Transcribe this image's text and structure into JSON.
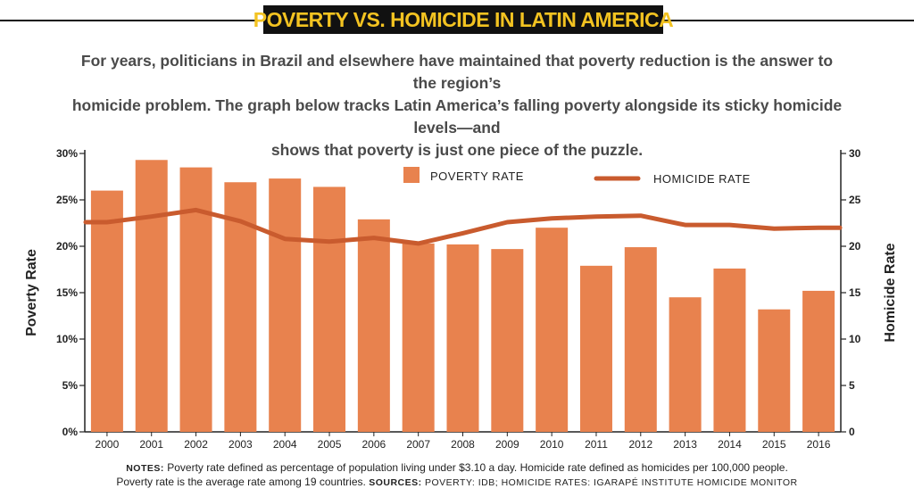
{
  "header": {
    "title": "POVERTY VS. HOMICIDE IN LATIN AMERICA",
    "subtitle_lines": [
      "For years, politicians in Brazil and elsewhere have maintained that poverty reduction is the answer to the region’s",
      "homicide problem. The graph below tracks Latin America’s falling poverty alongside its sticky homicide levels—and",
      "shows that poverty is just one piece of the puzzle."
    ]
  },
  "colors": {
    "bar": "#e8824e",
    "line": "#c95b2e",
    "title_bg": "#111111",
    "title_fg": "#f3c321",
    "axis": "#222222"
  },
  "chart_data": {
    "type": "bar",
    "categories": [
      "2000",
      "2001",
      "2002",
      "2003",
      "2004",
      "2005",
      "2006",
      "2007",
      "2008",
      "2009",
      "2010",
      "2011",
      "2012",
      "2013",
      "2014",
      "2015",
      "2016"
    ],
    "series": [
      {
        "name": "POVERTY RATE",
        "type": "bar",
        "axis": "left",
        "values": [
          26.0,
          29.3,
          28.5,
          26.9,
          27.3,
          26.4,
          22.9,
          20.3,
          20.2,
          19.7,
          22.0,
          17.9,
          19.9,
          14.5,
          17.6,
          13.2,
          15.2
        ]
      },
      {
        "name": "HOMICIDE RATE",
        "type": "line",
        "axis": "right",
        "values": [
          22.6,
          23.2,
          23.9,
          22.7,
          20.8,
          20.5,
          20.9,
          20.3,
          21.4,
          22.6,
          23.0,
          23.2,
          23.3,
          22.3,
          22.3,
          21.9,
          22.0
        ]
      }
    ],
    "y_left": {
      "label": "Poverty Rate",
      "ylim": [
        0,
        30
      ],
      "ticks": [
        "0%",
        "5%",
        "10%",
        "15%",
        "20%",
        "25%",
        "30%"
      ]
    },
    "y_right": {
      "label": "Homicide Rate",
      "ylim": [
        0,
        30
      ],
      "ticks": [
        "0",
        "5",
        "10",
        "15",
        "20",
        "25",
        "30"
      ]
    },
    "legend_position": "top-center",
    "grid": false
  },
  "notes": {
    "notes_label": "NOTES:",
    "line1": "Poverty rate defined as percentage of population living under $3.10 a day. Homicide rate defined as homicides per 100,000 people.",
    "line2_text": "Poverty rate is the average rate among 19 countries.",
    "sources_label": "SOURCES:",
    "sources_text": "POVERTY: IDB; HOMICIDE RATES: IGARAPÉ INSTITUTE HOMICIDE MONITOR"
  }
}
